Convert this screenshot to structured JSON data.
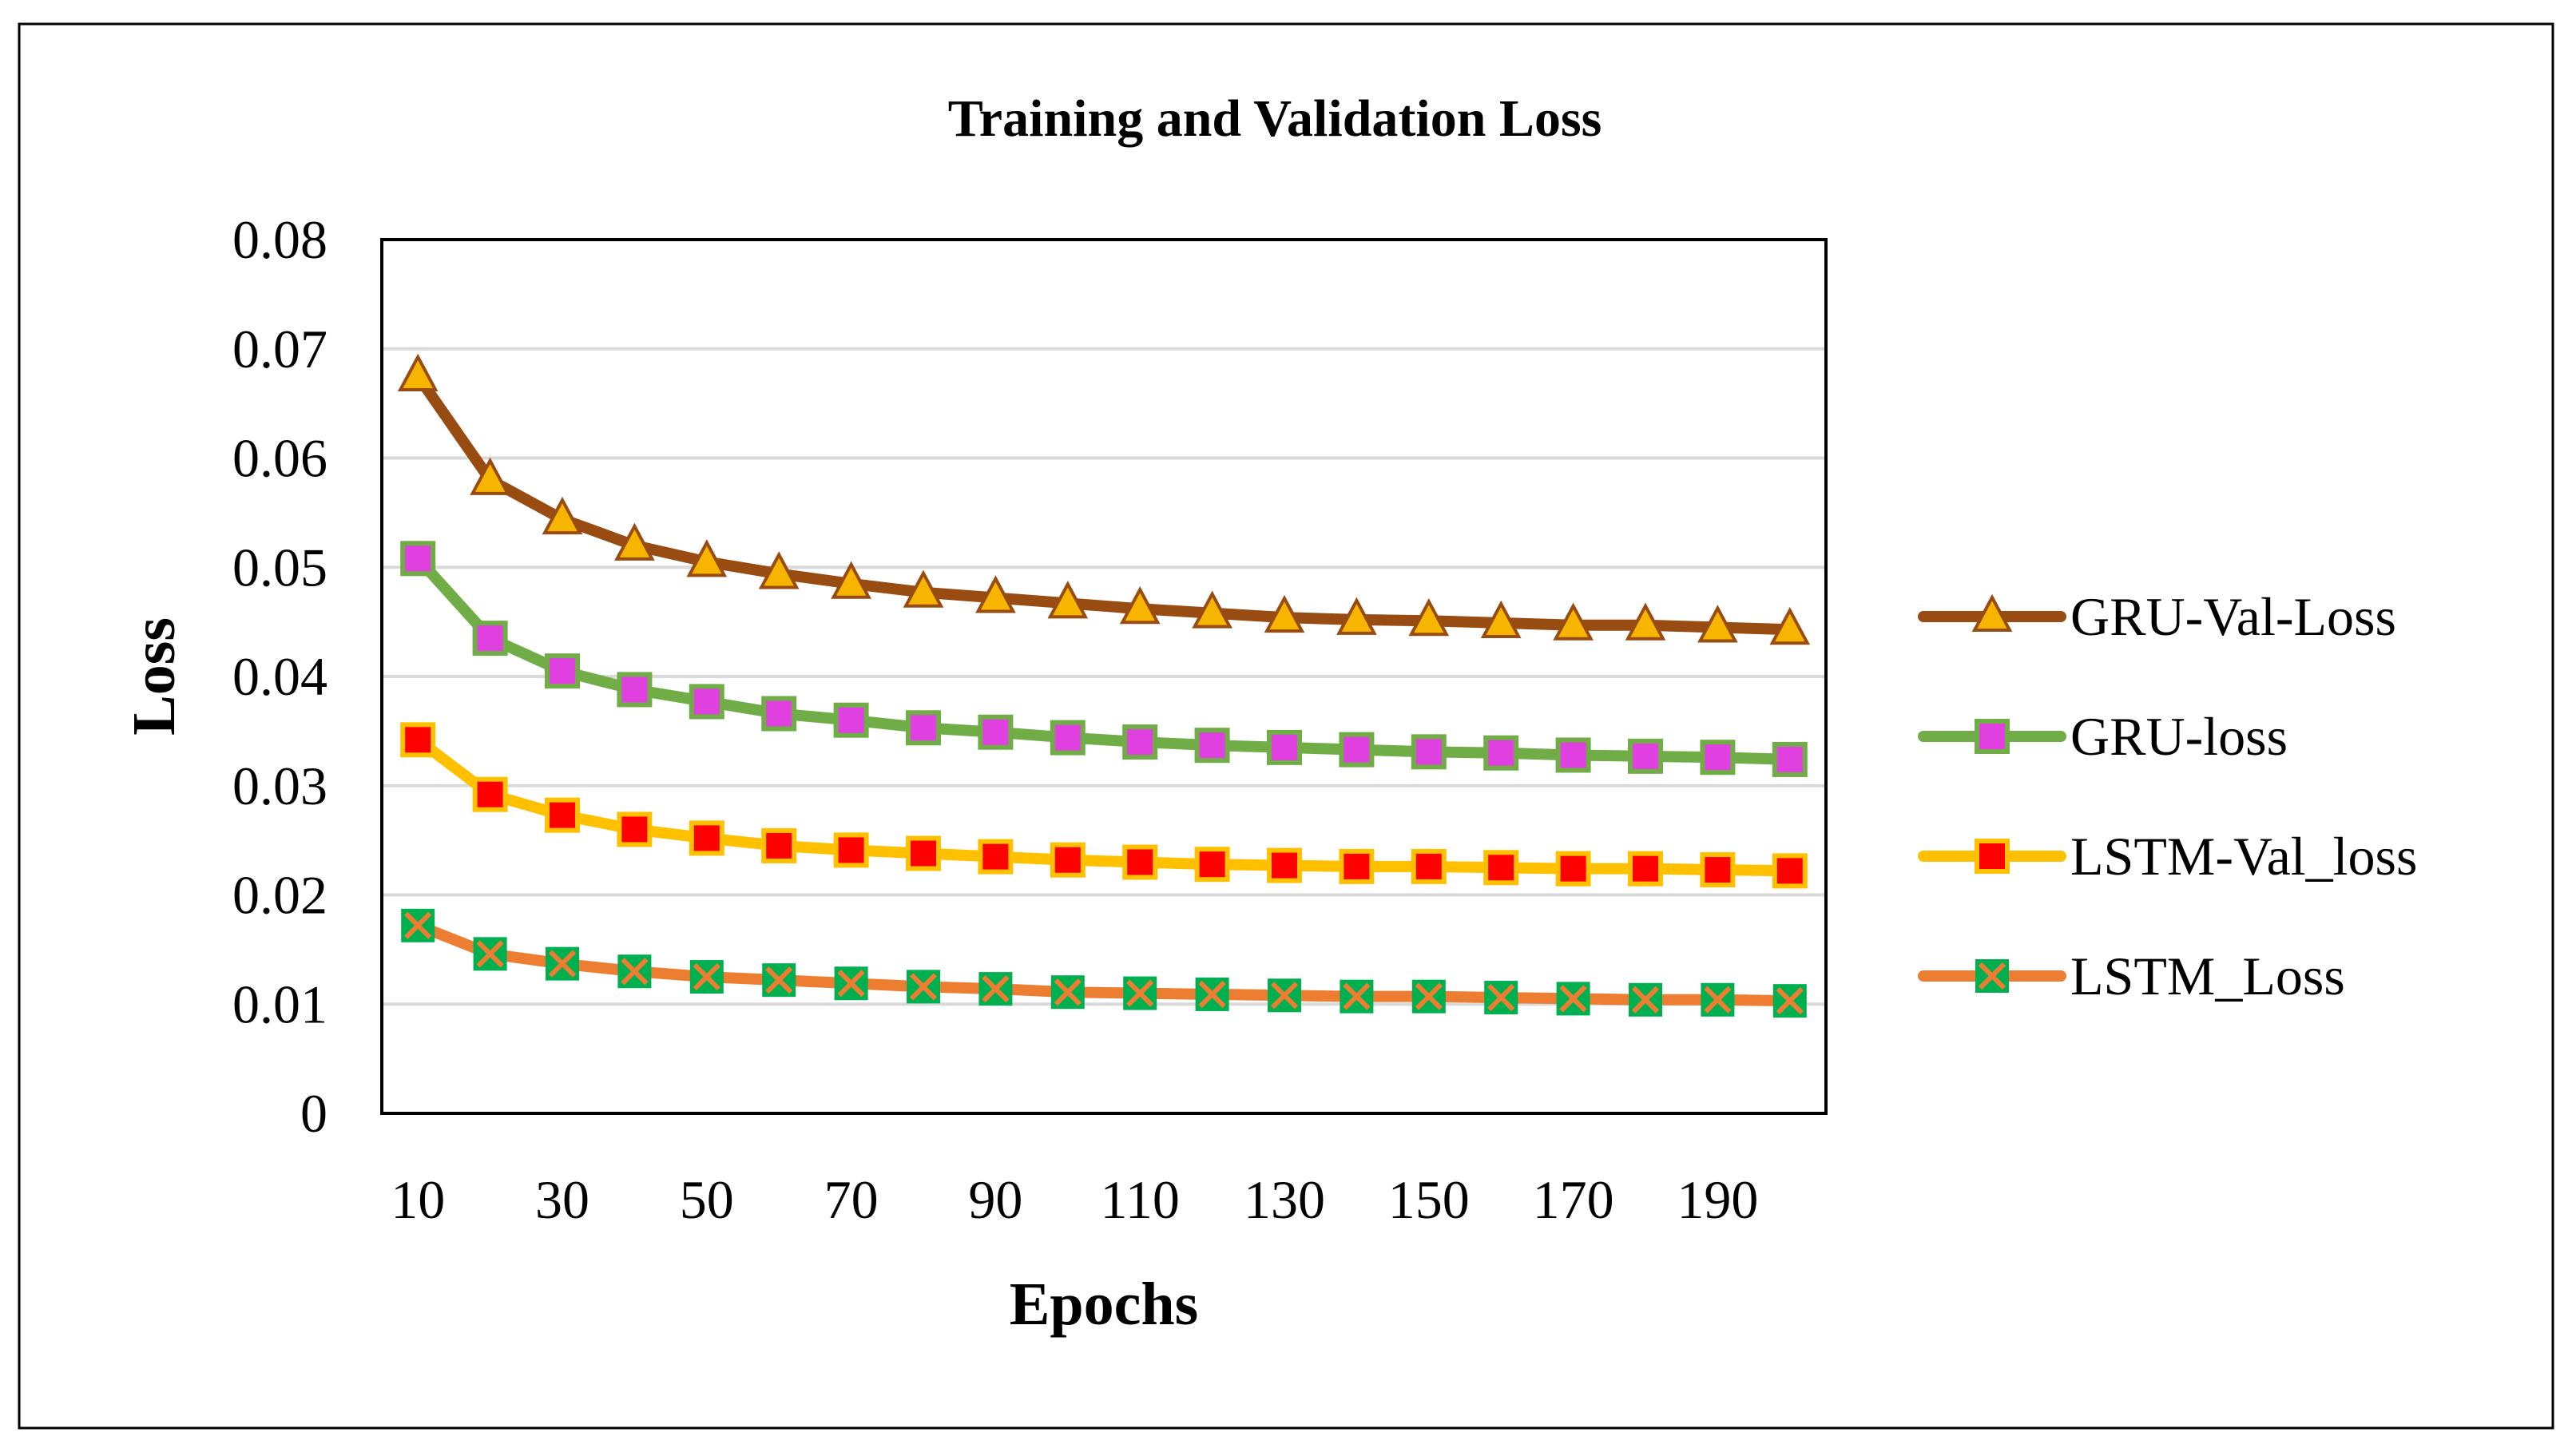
{
  "chart_data": {
    "type": "line",
    "title": "Training and Validation Loss",
    "xlabel": "Epochs",
    "ylabel": "Loss",
    "x": [
      10,
      20,
      30,
      40,
      50,
      60,
      70,
      80,
      90,
      100,
      110,
      120,
      130,
      140,
      150,
      160,
      170,
      180,
      190,
      200
    ],
    "x_tick_labels": [
      "10",
      "30",
      "50",
      "70",
      "90",
      "110",
      "130",
      "150",
      "170",
      "190"
    ],
    "y_tick_labels": [
      "0",
      "0.01",
      "0.02",
      "0.03",
      "0.04",
      "0.05",
      "0.06",
      "0.07",
      "0.08"
    ],
    "ylim": [
      0,
      0.08
    ],
    "grid": true,
    "legend_position": "right",
    "series": [
      {
        "name": "GRU-Val-Loss",
        "line_color": "#994C11",
        "marker": "triangle",
        "marker_fill": "#F7B500",
        "marker_edge": "#994C11",
        "values": [
          0.0675,
          0.058,
          0.0544,
          0.052,
          0.0505,
          0.0494,
          0.0485,
          0.0477,
          0.0472,
          0.0467,
          0.0462,
          0.0458,
          0.0454,
          0.0452,
          0.0451,
          0.0449,
          0.0447,
          0.0447,
          0.0445,
          0.0443
        ]
      },
      {
        "name": "GRU-loss",
        "line_color": "#70AD47",
        "marker": "square",
        "marker_fill": "#E040E0",
        "marker_edge": "#70AD47",
        "values": [
          0.0508,
          0.0435,
          0.0405,
          0.0388,
          0.0377,
          0.0366,
          0.036,
          0.0353,
          0.0349,
          0.0344,
          0.034,
          0.0337,
          0.0335,
          0.0333,
          0.0331,
          0.033,
          0.0328,
          0.0327,
          0.0326,
          0.0324
        ]
      },
      {
        "name": "LSTM-Val_loss",
        "line_color": "#FFC000",
        "marker": "square",
        "marker_fill": "#FF0000",
        "marker_edge": "#FFC000",
        "values": [
          0.0342,
          0.0292,
          0.0273,
          0.026,
          0.0252,
          0.0245,
          0.0241,
          0.0238,
          0.0235,
          0.0232,
          0.023,
          0.0228,
          0.0227,
          0.0226,
          0.0226,
          0.0225,
          0.0224,
          0.0224,
          0.0223,
          0.0222
        ]
      },
      {
        "name": "LSTM_Loss",
        "line_color": "#ED7D31",
        "marker": "xsquare",
        "marker_fill": "#00B050",
        "marker_edge": "#ED7D31",
        "values": [
          0.0172,
          0.0146,
          0.0137,
          0.013,
          0.0125,
          0.0122,
          0.0119,
          0.0116,
          0.0114,
          0.0111,
          0.011,
          0.0109,
          0.0108,
          0.0107,
          0.0107,
          0.0106,
          0.0105,
          0.0104,
          0.0104,
          0.0103
        ]
      }
    ]
  }
}
